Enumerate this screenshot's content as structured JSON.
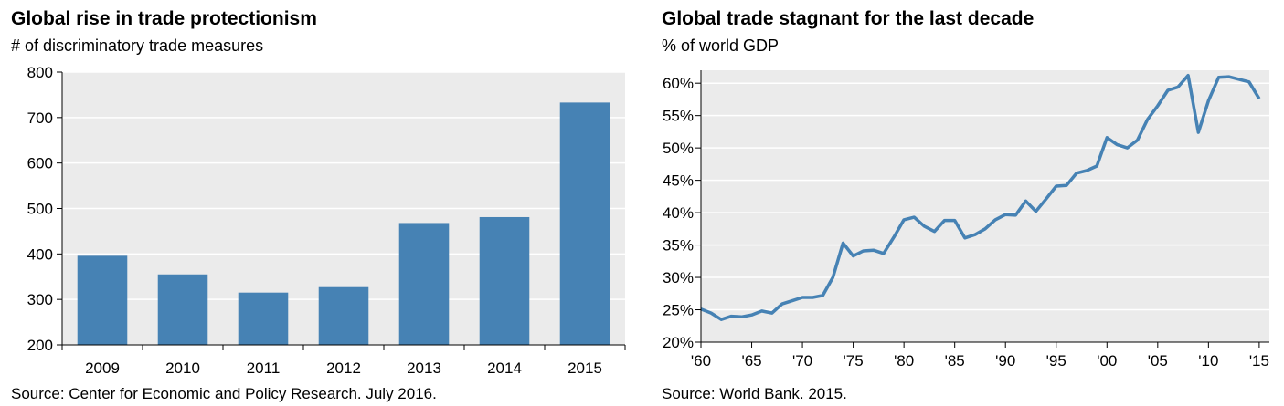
{
  "charts": [
    {
      "title": "Global rise in trade protectionism",
      "subtitle": "# of discriminatory trade measures",
      "source": "Source: Center for Economic and Policy Research. July 2016."
    },
    {
      "title": "Global trade stagnant for the last decade",
      "subtitle": "% of world GDP",
      "source": "Source: World Bank. 2015."
    }
  ],
  "colors": {
    "bar": "#4682b4",
    "line": "#4682b4",
    "plot_bg": "#ebebeb",
    "gridline": "#ffffff"
  },
  "chart_data": [
    {
      "type": "bar",
      "title": "Global rise in trade protectionism",
      "subtitle": "# of discriminatory trade measures",
      "categories": [
        "2009",
        "2010",
        "2011",
        "2012",
        "2013",
        "2014",
        "2015"
      ],
      "values": [
        396,
        355,
        315,
        327,
        468,
        481,
        733
      ],
      "ylim": [
        200,
        800
      ],
      "yticks": [
        "200",
        "300",
        "400",
        "500",
        "600",
        "700",
        "800"
      ],
      "grid": true
    },
    {
      "type": "line",
      "title": "Global trade stagnant for the last decade",
      "subtitle": "% of world GDP",
      "x": [
        1960,
        1961,
        1962,
        1963,
        1964,
        1965,
        1966,
        1967,
        1968,
        1969,
        1970,
        1971,
        1972,
        1973,
        1974,
        1975,
        1976,
        1977,
        1978,
        1979,
        1980,
        1981,
        1982,
        1983,
        1984,
        1985,
        1986,
        1987,
        1988,
        1989,
        1990,
        1991,
        1992,
        1993,
        1994,
        1995,
        1996,
        1997,
        1998,
        1999,
        2000,
        2001,
        2002,
        2003,
        2004,
        2005,
        2006,
        2007,
        2008,
        2009,
        2010,
        2011,
        2012,
        2013,
        2014,
        2015
      ],
      "y": [
        25.1,
        24.5,
        23.5,
        24.0,
        23.9,
        24.2,
        24.8,
        24.5,
        25.9,
        26.4,
        26.9,
        26.9,
        27.2,
        30.0,
        35.3,
        33.3,
        34.1,
        34.2,
        33.7,
        36.2,
        38.9,
        39.3,
        37.9,
        37.1,
        38.8,
        38.8,
        36.1,
        36.6,
        37.5,
        38.9,
        39.7,
        39.6,
        41.8,
        40.2,
        42.1,
        44.1,
        44.2,
        46.1,
        46.5,
        47.2,
        51.6,
        50.5,
        50.0,
        51.2,
        54.4,
        56.5,
        58.9,
        59.4,
        61.2,
        52.4,
        57.3,
        60.9,
        61.0,
        60.6,
        60.2,
        57.6
      ],
      "ylim": [
        20,
        62
      ],
      "yticks": [
        "20%",
        "25%",
        "30%",
        "35%",
        "40%",
        "45%",
        "50%",
        "55%",
        "60%"
      ],
      "xticks": [
        "'60",
        "'65",
        "'70",
        "'75",
        "'80",
        "'85",
        "'90",
        "'95",
        "'00",
        "'05",
        "'10",
        "'15"
      ],
      "grid": true
    }
  ]
}
